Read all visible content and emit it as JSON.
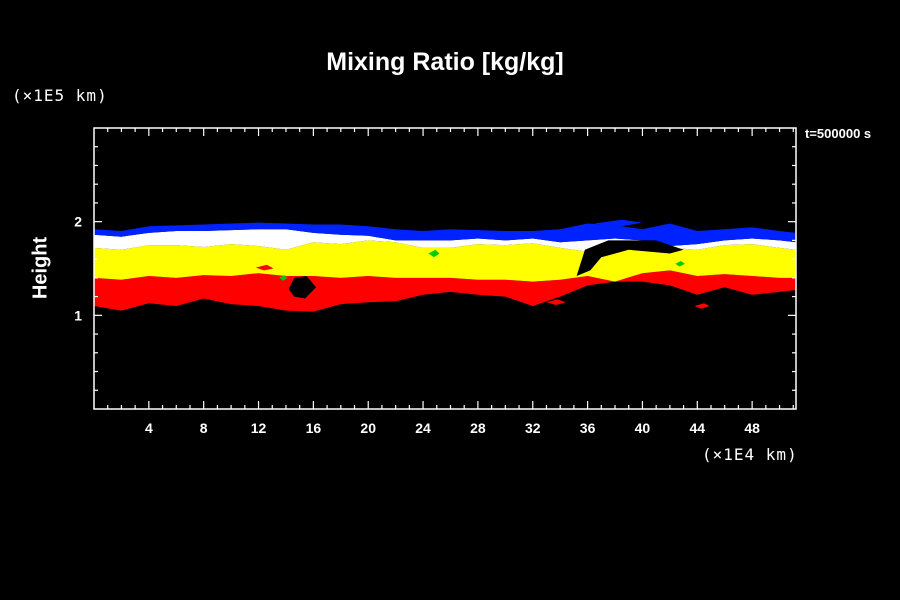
{
  "chart_data": {
    "type": "heatmap",
    "title": "Mixing Ratio [kg/kg]",
    "xlabel": "",
    "ylabel": "Height",
    "x_unit": "(×1E4 km)",
    "y_unit": "(×1E5 km)",
    "time_label": "t=500000 s",
    "xlim": [
      0,
      51.2
    ],
    "ylim": [
      0,
      3
    ],
    "x_ticks": [
      4,
      8,
      12,
      16,
      20,
      24,
      28,
      32,
      36,
      40,
      44,
      48
    ],
    "y_ticks": [
      1,
      2
    ],
    "grid": false,
    "background": "#000000",
    "colors": {
      "red": "#ff0000",
      "yellow": "#ffff00",
      "white": "#ffffff",
      "blue": "#0022ff",
      "green": "#00cc00"
    },
    "bands": {
      "x": [
        0,
        2,
        4,
        6,
        8,
        10,
        12,
        14,
        16,
        18,
        20,
        22,
        24,
        26,
        28,
        30,
        32,
        34,
        36,
        38,
        40,
        42,
        44,
        46,
        48,
        50,
        51.2
      ],
      "red_bottom": [
        1.1,
        1.05,
        1.13,
        1.1,
        1.18,
        1.12,
        1.1,
        1.05,
        1.04,
        1.12,
        1.14,
        1.15,
        1.22,
        1.25,
        1.22,
        1.2,
        1.1,
        1.2,
        1.32,
        1.36,
        1.36,
        1.32,
        1.22,
        1.3,
        1.22,
        1.25,
        1.27
      ],
      "yellow_bottom": [
        1.4,
        1.38,
        1.42,
        1.4,
        1.43,
        1.42,
        1.45,
        1.42,
        1.42,
        1.4,
        1.42,
        1.4,
        1.4,
        1.4,
        1.38,
        1.38,
        1.36,
        1.38,
        1.42,
        1.36,
        1.45,
        1.48,
        1.42,
        1.44,
        1.42,
        1.4,
        1.4
      ],
      "white_bottom": [
        1.72,
        1.7,
        1.75,
        1.75,
        1.73,
        1.76,
        1.74,
        1.7,
        1.78,
        1.76,
        1.8,
        1.78,
        1.72,
        1.72,
        1.76,
        1.75,
        1.77,
        1.72,
        1.68,
        1.78,
        1.8,
        1.72,
        1.7,
        1.75,
        1.76,
        1.72,
        1.7
      ],
      "white_top": [
        1.86,
        1.84,
        1.88,
        1.9,
        1.9,
        1.91,
        1.92,
        1.92,
        1.88,
        1.86,
        1.85,
        1.8,
        1.8,
        1.8,
        1.82,
        1.8,
        1.82,
        1.78,
        1.8,
        1.82,
        1.8,
        1.74,
        1.76,
        1.8,
        1.82,
        1.8,
        1.78
      ],
      "blue_top": [
        1.92,
        1.9,
        1.95,
        1.96,
        1.97,
        1.98,
        1.99,
        1.98,
        1.97,
        1.97,
        1.95,
        1.92,
        1.9,
        1.92,
        1.91,
        1.9,
        1.9,
        1.92,
        1.98,
        1.96,
        1.92,
        1.98,
        1.9,
        1.92,
        1.94,
        1.9,
        1.88
      ]
    },
    "features": [
      {
        "name": "dark-intrusion",
        "color": "black",
        "points": [
          [
            35.2,
            1.42
          ],
          [
            35.8,
            1.7
          ],
          [
            37.5,
            1.8
          ],
          [
            41.0,
            1.8
          ],
          [
            43.0,
            1.7
          ],
          [
            42.0,
            1.66
          ],
          [
            39.0,
            1.7
          ],
          [
            37.0,
            1.62
          ],
          [
            36.2,
            1.48
          ]
        ]
      },
      {
        "name": "dark-patch-lower",
        "color": "black",
        "points": [
          [
            14.2,
            1.28
          ],
          [
            14.6,
            1.4
          ],
          [
            15.5,
            1.42
          ],
          [
            16.2,
            1.3
          ],
          [
            15.4,
            1.18
          ],
          [
            14.6,
            1.2
          ]
        ]
      },
      {
        "name": "red-blob-1",
        "color": "red",
        "points": [
          [
            33.0,
            1.14
          ],
          [
            33.8,
            1.17
          ],
          [
            34.4,
            1.14
          ],
          [
            33.7,
            1.11
          ]
        ]
      },
      {
        "name": "red-blob-2",
        "color": "red",
        "points": [
          [
            43.8,
            1.1
          ],
          [
            44.5,
            1.13
          ],
          [
            44.9,
            1.1
          ],
          [
            44.3,
            1.07
          ]
        ]
      },
      {
        "name": "red-blob-3",
        "color": "red",
        "points": [
          [
            11.8,
            1.51
          ],
          [
            12.6,
            1.54
          ],
          [
            13.1,
            1.5
          ],
          [
            12.4,
            1.48
          ]
        ]
      },
      {
        "name": "green-speck-1",
        "color": "green",
        "points": [
          [
            13.5,
            1.4
          ],
          [
            13.9,
            1.43
          ],
          [
            14.1,
            1.4
          ],
          [
            13.8,
            1.37
          ]
        ]
      },
      {
        "name": "green-speck-2",
        "color": "green",
        "points": [
          [
            24.4,
            1.66
          ],
          [
            24.9,
            1.7
          ],
          [
            25.2,
            1.66
          ],
          [
            24.8,
            1.62
          ]
        ]
      },
      {
        "name": "green-speck-3",
        "color": "green",
        "points": [
          [
            42.4,
            1.55
          ],
          [
            42.8,
            1.58
          ],
          [
            43.1,
            1.55
          ],
          [
            42.7,
            1.52
          ]
        ]
      },
      {
        "name": "blue-patch-top",
        "color": "blue",
        "points": [
          [
            36.5,
            1.98
          ],
          [
            38.5,
            2.02
          ],
          [
            40.0,
            1.99
          ],
          [
            38.0,
            1.94
          ]
        ]
      },
      {
        "name": "blue-patch-right",
        "color": "blue",
        "points": [
          [
            44.0,
            1.86
          ],
          [
            46.0,
            1.9
          ],
          [
            47.0,
            1.86
          ],
          [
            45.5,
            1.82
          ]
        ]
      }
    ]
  }
}
